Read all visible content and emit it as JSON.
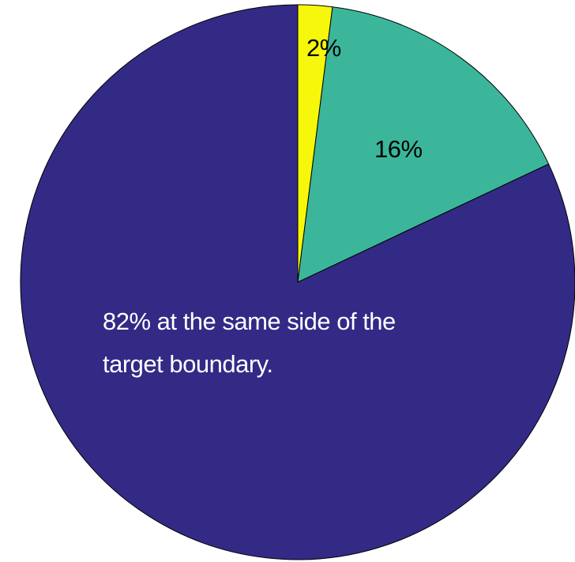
{
  "chart_data": {
    "type": "pie",
    "values": [
      2,
      16,
      82
    ],
    "value_labels": [
      "2%",
      "16%",
      "82% at the same side of the target boundary."
    ],
    "colors": [
      "#f7f70c",
      "#3bb69b",
      "#332a86"
    ],
    "start_angle": 0,
    "direction": "clockwise"
  }
}
